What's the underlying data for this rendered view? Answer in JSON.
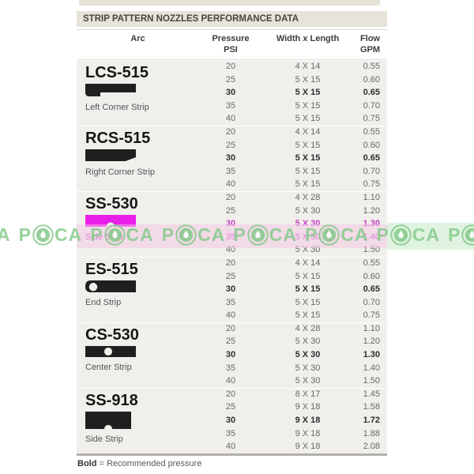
{
  "title": "STRIP PATTERN NOZZLES PERFORMANCE DATA",
  "columns": {
    "arc": "Arc",
    "pressure": "Pressure",
    "pressure_unit": "PSI",
    "width_length": "Width x Length",
    "flow": "Flow",
    "flow_unit": "GPM"
  },
  "sections": [
    {
      "model": "LCS-515",
      "label": "Left Corner Strip",
      "shape": "left-corner-strip",
      "shape_color": "#1f1f1f",
      "recommended_psi": "30",
      "rows": [
        {
          "psi": "20",
          "width_length": "4 X 14",
          "flow": "0.55"
        },
        {
          "psi": "25",
          "width_length": "5 X 15",
          "flow": "0.60"
        },
        {
          "psi": "30",
          "width_length": "5 X 15",
          "flow": "0.65"
        },
        {
          "psi": "35",
          "width_length": "5 X 15",
          "flow": "0.70"
        },
        {
          "psi": "40",
          "width_length": "5 X 15",
          "flow": "0.75"
        }
      ]
    },
    {
      "model": "RCS-515",
      "label": "Right Corner Strip",
      "shape": "right-corner-strip",
      "shape_color": "#1f1f1f",
      "recommended_psi": "30",
      "rows": [
        {
          "psi": "20",
          "width_length": "4 X 14",
          "flow": "0.55"
        },
        {
          "psi": "25",
          "width_length": "5 X 15",
          "flow": "0.60"
        },
        {
          "psi": "30",
          "width_length": "5 X 15",
          "flow": "0.65"
        },
        {
          "psi": "35",
          "width_length": "5 X 15",
          "flow": "0.70"
        },
        {
          "psi": "40",
          "width_length": "5 X 15",
          "flow": "0.75"
        }
      ]
    },
    {
      "model": "SS-530",
      "label": "Side Strip",
      "shape": "side-strip",
      "shape_color": "#e91ee9",
      "label_color": "#c63fc6",
      "tinted_psi": [
        "30",
        "35"
      ],
      "tint_color": "#c63fc6",
      "recommended_psi": "30",
      "rows": [
        {
          "psi": "20",
          "width_length": "4 X 28",
          "flow": "1.10"
        },
        {
          "psi": "25",
          "width_length": "5 X 30",
          "flow": "1.20"
        },
        {
          "psi": "30",
          "width_length": "5 X 30",
          "flow": "1.30"
        },
        {
          "psi": "35",
          "width_length": "5 X 30",
          "flow": "1.40"
        },
        {
          "psi": "40",
          "width_length": "5 X 30",
          "flow": "1.50"
        }
      ]
    },
    {
      "model": "ES-515",
      "label": "End Strip",
      "shape": "end-strip",
      "shape_color": "#1f1f1f",
      "recommended_psi": "30",
      "rows": [
        {
          "psi": "20",
          "width_length": "4 X 14",
          "flow": "0.55"
        },
        {
          "psi": "25",
          "width_length": "5 X 15",
          "flow": "0.60"
        },
        {
          "psi": "30",
          "width_length": "5 X 15",
          "flow": "0.65"
        },
        {
          "psi": "35",
          "width_length": "5 X 15",
          "flow": "0.70"
        },
        {
          "psi": "40",
          "width_length": "5 X 15",
          "flow": "0.75"
        }
      ]
    },
    {
      "model": "CS-530",
      "label": "Center Strip",
      "shape": "center-strip",
      "shape_color": "#1f1f1f",
      "recommended_psi": "30",
      "rows": [
        {
          "psi": "20",
          "width_length": "4 X 28",
          "flow": "1.10"
        },
        {
          "psi": "25",
          "width_length": "5 X 30",
          "flow": "1.20"
        },
        {
          "psi": "30",
          "width_length": "5 X 30",
          "flow": "1.30"
        },
        {
          "psi": "35",
          "width_length": "5 X 30",
          "flow": "1.40"
        },
        {
          "psi": "40",
          "width_length": "5 X 30",
          "flow": "1.50"
        }
      ]
    },
    {
      "model": "SS-918",
      "label": "Side Strip",
      "shape": "side-strip-918",
      "shape_color": "#1f1f1f",
      "recommended_psi": "30",
      "rows": [
        {
          "psi": "20",
          "width_length": "8 X 17",
          "flow": "1.45"
        },
        {
          "psi": "25",
          "width_length": "9 X 18",
          "flow": "1.58"
        },
        {
          "psi": "30",
          "width_length": "9 X 18",
          "flow": "1.72"
        },
        {
          "psi": "35",
          "width_length": "9 X 18",
          "flow": "1.88"
        },
        {
          "psi": "40",
          "width_length": "9 X 18",
          "flow": "2.08"
        }
      ]
    }
  ],
  "footer": {
    "bold_word": "Bold",
    "rest": " = Recommended pressure"
  },
  "watermark": {
    "prefix": "A",
    "unit_left": "P",
    "unit_right": "CA",
    "repeats": 9,
    "text_color": "#85ca8b",
    "band_pink": "rgba(243,198,227,0.5)",
    "band_green": "rgba(210,238,211,0.7)"
  }
}
